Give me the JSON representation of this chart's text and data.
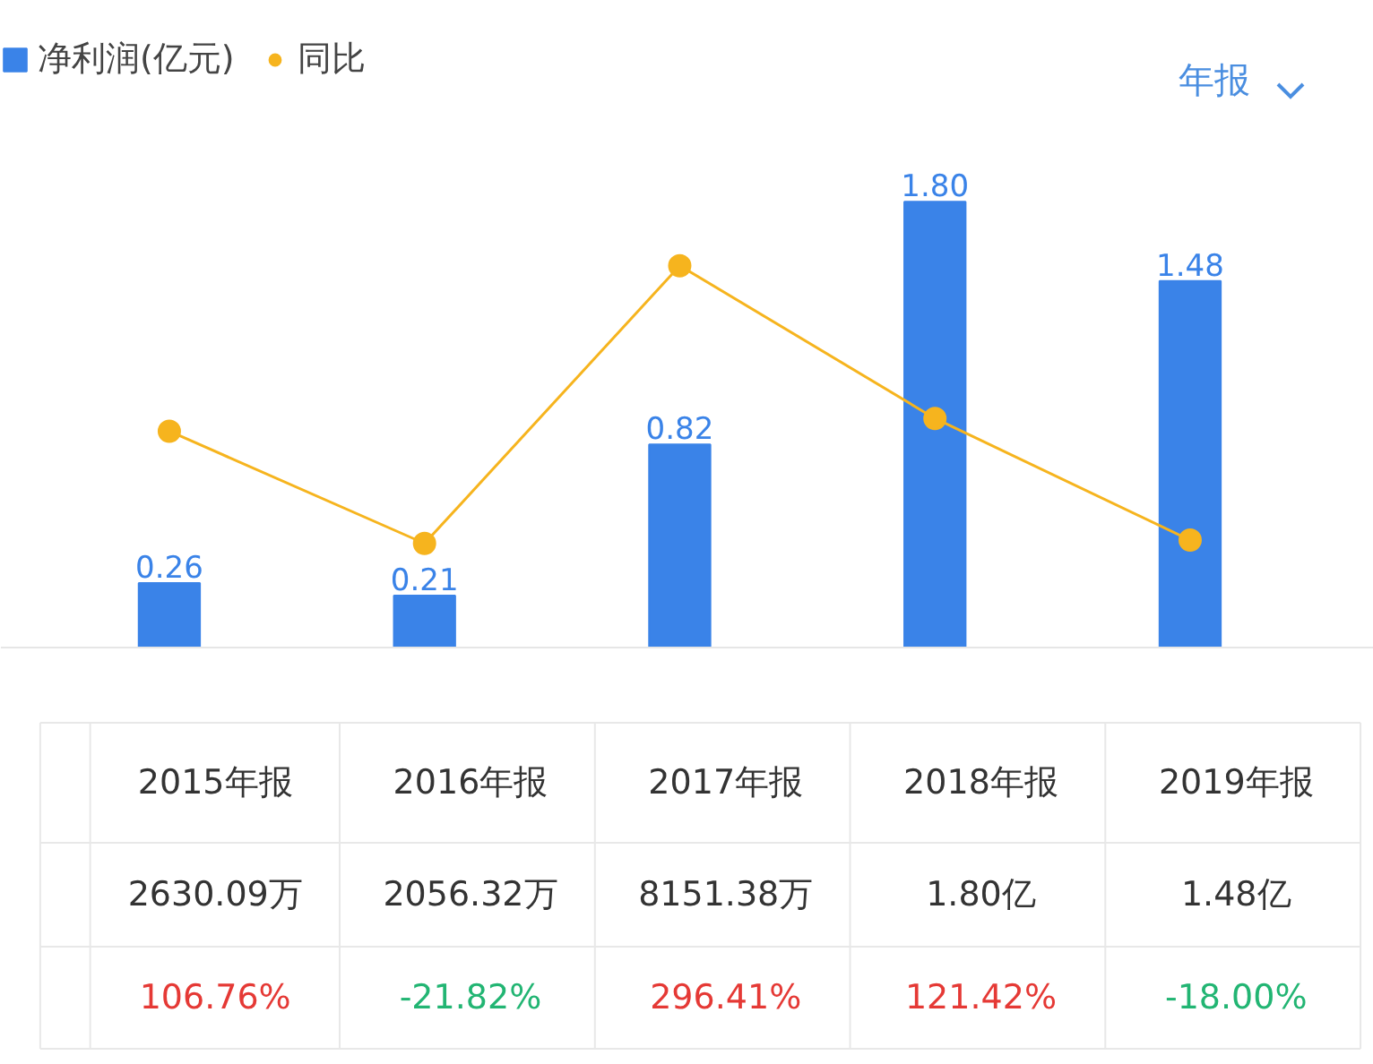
{
  "chart_data": {
    "type": "bar",
    "categories": [
      "2015年报",
      "2016年报",
      "2017年报",
      "2018年报",
      "2019年报"
    ],
    "series": [
      {
        "name": "净利润(亿元)",
        "color": "#3a83e8",
        "values": [
          0.26,
          0.21,
          0.82,
          1.8,
          1.48
        ],
        "value_labels": [
          "0.26",
          "0.21",
          "0.82",
          "1.80",
          "1.48"
        ]
      },
      {
        "name": "同比",
        "type": "line",
        "axis": "y2",
        "color": "#f6b41e",
        "values": [
          106.76,
          -21.82,
          296.41,
          121.42,
          -18.0
        ],
        "value_labels": [
          "106.76%",
          "-21.82%",
          "296.41%",
          "121.42%",
          "-18.00%"
        ]
      }
    ],
    "legend": "top left",
    "grid": false,
    "marker": "circle",
    "annotations": [
      "年报",
      "2630.09万",
      "2056.32万",
      "8151.38万",
      "1.80亿",
      "1.48亿"
    ]
  }
}
